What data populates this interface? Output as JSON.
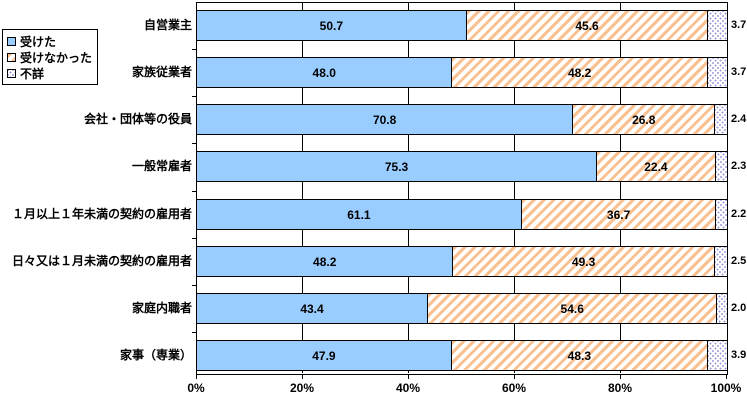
{
  "chart_data": {
    "type": "bar",
    "orientation": "horizontal",
    "stacked": true,
    "unit": "%",
    "categories": [
      "自営業主",
      "家族従業者",
      "会社・団体等の役員",
      "一般常雇者",
      "１月以上１年未満の契約の雇用者",
      "日々又は１月未満の契約の雇用者",
      "家庭内職者",
      "家事（専業）"
    ],
    "series": [
      {
        "name": "受けた",
        "values": [
          50.7,
          48.0,
          70.8,
          75.3,
          61.1,
          48.2,
          43.4,
          47.9
        ]
      },
      {
        "name": "受けなかった",
        "values": [
          45.6,
          48.2,
          26.8,
          22.4,
          36.7,
          49.3,
          54.6,
          48.3
        ]
      },
      {
        "name": "不詳",
        "values": [
          3.7,
          3.7,
          2.4,
          2.3,
          2.2,
          2.5,
          2.0,
          3.9
        ]
      }
    ],
    "x_ticks": [
      "0%",
      "20%",
      "40%",
      "60%",
      "80%",
      "100%"
    ],
    "xlim": [
      0,
      100
    ],
    "grid": true,
    "legend_position": "outside-left-top",
    "colors": {
      "received_fill": "#99ccff",
      "not_received_stripes": "#fac090",
      "unknown_dots": "#9a9ade",
      "line": "#000000"
    }
  }
}
